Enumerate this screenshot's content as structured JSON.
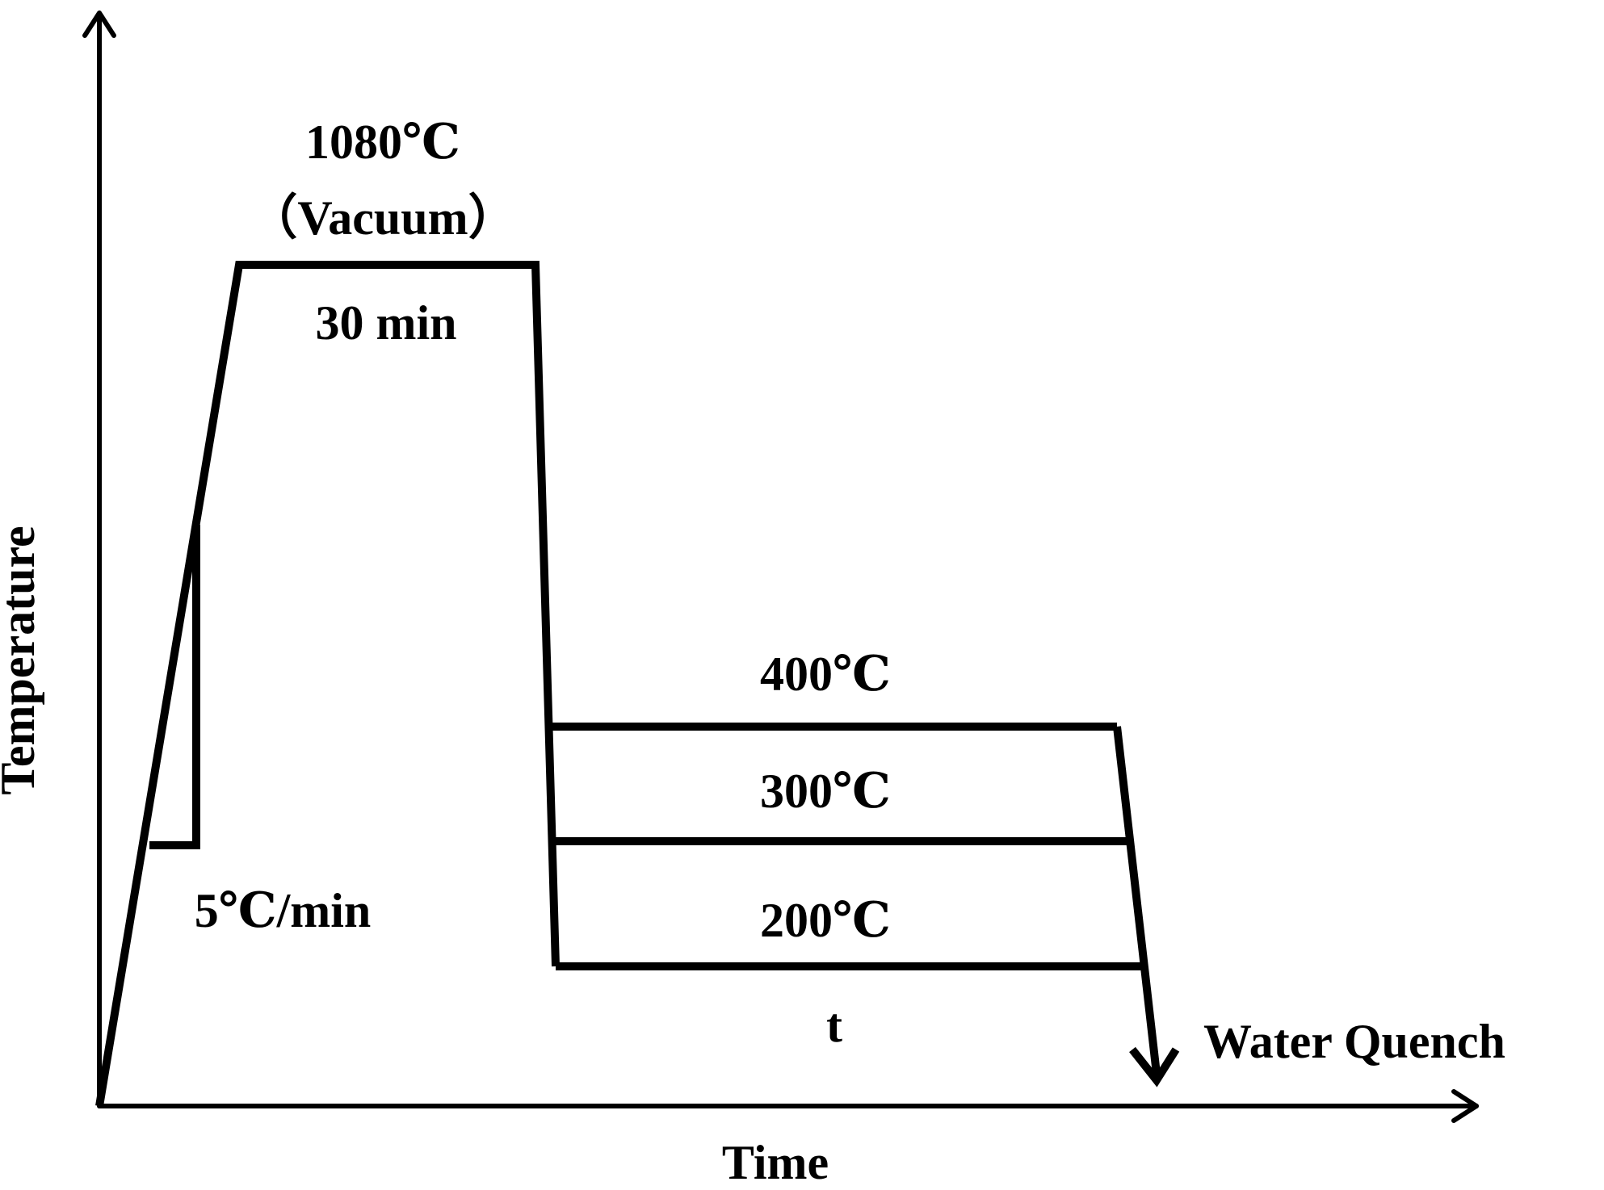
{
  "axes": {
    "y_label": "Temperature",
    "x_label": "Time"
  },
  "annotations": {
    "solution_temp": "1080℃",
    "atmosphere": "（Vacuum）",
    "hold_time": "30 min",
    "heating_rate": "5℃/min",
    "aging_temp_1": "400℃",
    "aging_temp_2": "300℃",
    "aging_temp_3": "200℃",
    "aging_time": "t",
    "quench": "Water Quench"
  },
  "colors": {
    "line": "#000000",
    "background": "#ffffff"
  }
}
